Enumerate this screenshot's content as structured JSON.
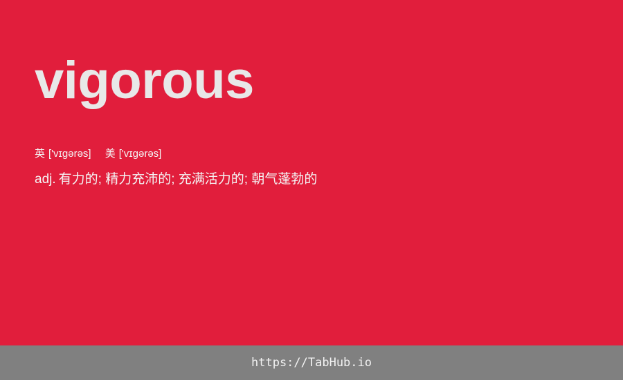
{
  "word": "vigorous",
  "phonetics": {
    "uk_label": "英",
    "uk": "['vɪgərəs]",
    "us_label": "美",
    "us": "['vɪgərəs]"
  },
  "definition": {
    "pos": "adj.",
    "text": "有力的; 精力充沛的; 充满活力的; 朝气蓬勃的"
  },
  "footer": {
    "link": "https://TabHub.io"
  },
  "colors": {
    "background": "#e11e3c",
    "footer": "#808080",
    "word_text": "#e8e8e8"
  }
}
